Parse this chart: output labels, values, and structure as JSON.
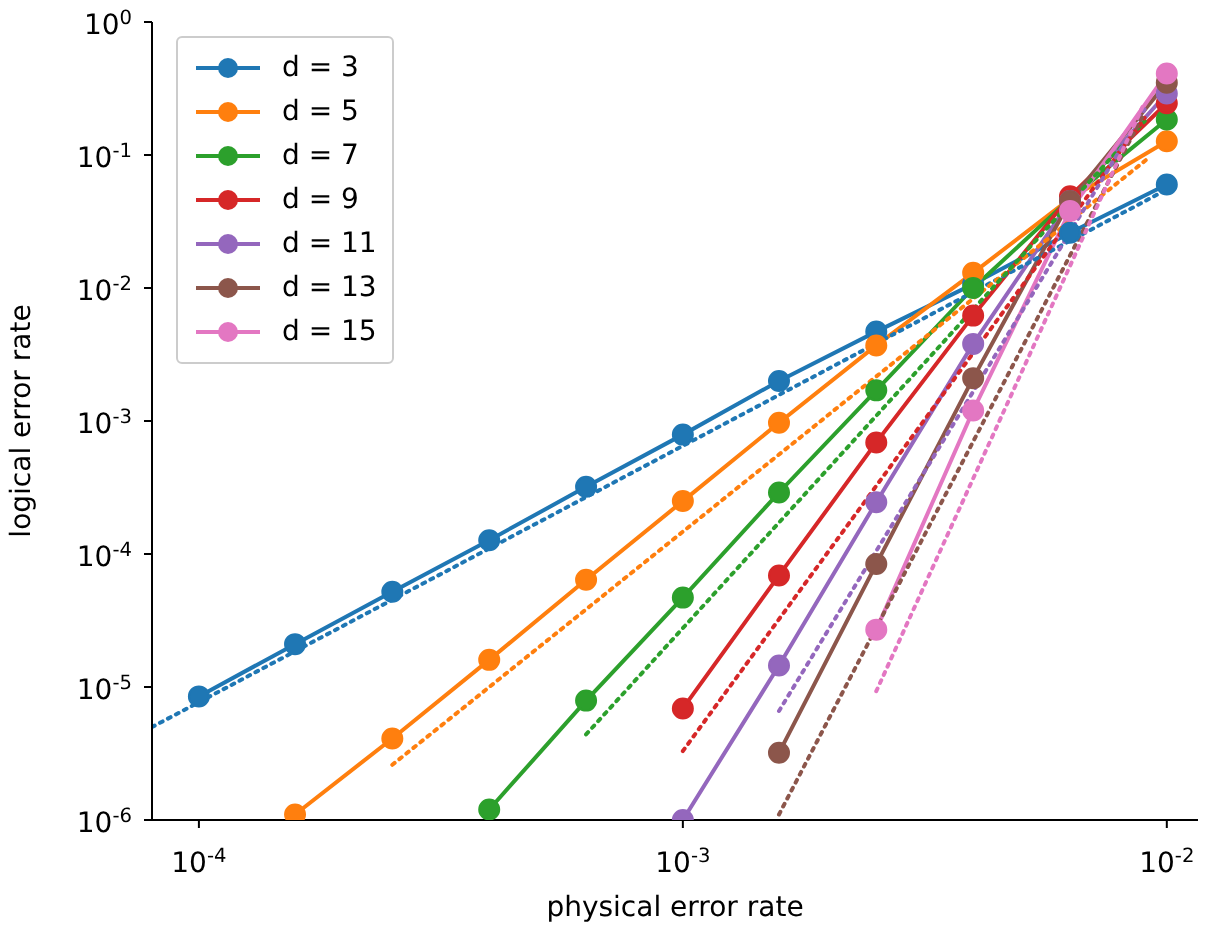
{
  "chart_data": {
    "type": "line",
    "xlabel": "physical error rate",
    "ylabel": "logical error rate",
    "log": "xy",
    "legend": "top left",
    "marker": "circle",
    "line_style": "solid",
    "xlim": [
      8e-05,
      0.0116
    ],
    "xticks": [
      {
        "value": 0.0001,
        "label": "10$^{-4}$"
      },
      {
        "value": 0.001,
        "label": "10$^{-3}$"
      },
      {
        "value": 0.01,
        "label": "10$^{-2}$"
      }
    ],
    "ylim": [
      1e-06,
      1
    ],
    "yticks": [
      {
        "value": 1e-06,
        "label": "10$^{-6}$"
      },
      {
        "value": 1e-05,
        "label": "10$^{-5}$"
      },
      {
        "value": 0.0001,
        "label": "10$^{-4}$"
      },
      {
        "value": 0.001,
        "label": "10$^{-3}$"
      },
      {
        "value": 0.01,
        "label": "10$^{-2}$"
      },
      {
        "value": 0.1,
        "label": "10$^{-1}$"
      },
      {
        "value": 1,
        "label": "10$^{0}$"
      }
    ],
    "series": [
      {
        "name": "d = 3",
        "color": "#1f77b4",
        "x": [
          0.0001,
          0.000158,
          0.000251,
          0.000398,
          0.000631,
          0.001,
          0.00158,
          0.00251,
          0.00398,
          0.00631,
          0.01
        ],
        "values": [
          8.5e-06,
          2.1e-05,
          5.2e-05,
          0.000127,
          0.00032,
          0.00079,
          0.002,
          0.0047,
          0.0107,
          0.026,
          0.06
        ]
      },
      {
        "name": "d = 5",
        "color": "#ff7f0e",
        "x": [
          0.000158,
          0.000251,
          0.000398,
          0.000631,
          0.001,
          0.00158,
          0.00251,
          0.00398,
          0.00631,
          0.01
        ],
        "values": [
          1.1e-06,
          4.1e-06,
          1.6e-05,
          6.4e-05,
          0.00025,
          0.00097,
          0.0037,
          0.013,
          0.047,
          0.127
        ]
      },
      {
        "name": "d = 7",
        "color": "#2ca02c",
        "x": [
          0.000398,
          0.000631,
          0.001,
          0.00158,
          0.00251,
          0.00398,
          0.00631,
          0.01
        ],
        "values": [
          1.2e-06,
          7.9e-06,
          4.7e-05,
          0.00029,
          0.0017,
          0.01,
          0.047,
          0.185
        ]
      },
      {
        "name": "d = 9",
        "color": "#d62728",
        "x": [
          0.001,
          0.00158,
          0.00251,
          0.00398,
          0.00631,
          0.01
        ],
        "values": [
          6.9e-06,
          6.9e-05,
          0.00069,
          0.0062,
          0.049,
          0.245
        ]
      },
      {
        "name": "d = 11",
        "color": "#9467bd",
        "x": [
          0.001,
          0.00158,
          0.00251,
          0.00398,
          0.00631,
          0.01
        ],
        "values": [
          1e-06,
          1.45e-05,
          0.000245,
          0.0038,
          0.045,
          0.29
        ]
      },
      {
        "name": "d = 13",
        "color": "#8c564b",
        "x": [
          0.00158,
          0.00251,
          0.00398,
          0.00631,
          0.01
        ],
        "values": [
          3.2e-06,
          8.4e-05,
          0.0021,
          0.045,
          0.35
        ]
      },
      {
        "name": "d = 15",
        "color": "#e377c2",
        "x": [
          0.00251,
          0.00398,
          0.00631,
          0.01
        ],
        "values": [
          2.7e-05,
          0.0012,
          0.038,
          0.41
        ]
      },
      {
        "color": "#1f77b4",
        "line_style": "dotted",
        "marker": "none",
        "x": [
          8e-05,
          0.01
        ],
        "values": [
          5e-06,
          0.055
        ]
      },
      {
        "color": "#ff7f0e",
        "line_style": "dotted",
        "marker": "none",
        "x": [
          0.000251,
          0.0091
        ],
        "values": [
          2.6e-06,
          0.093
        ]
      },
      {
        "color": "#2ca02c",
        "line_style": "dotted",
        "marker": "none",
        "x": [
          0.000631,
          0.009
        ],
        "values": [
          4.4e-06,
          0.18
        ]
      },
      {
        "color": "#d62728",
        "line_style": "dotted",
        "marker": "none",
        "x": [
          0.001,
          0.009
        ],
        "values": [
          3.3e-06,
          0.19
        ]
      },
      {
        "color": "#9467bd",
        "line_style": "dotted",
        "marker": "none",
        "x": [
          0.00158,
          0.009
        ],
        "values": [
          6.6e-06,
          0.22
        ]
      },
      {
        "color": "#8c564b",
        "line_style": "dotted",
        "marker": "none",
        "x": [
          0.00158,
          0.009
        ],
        "values": [
          1.1e-06,
          0.21
        ]
      },
      {
        "color": "#e377c2",
        "line_style": "dotted",
        "marker": "none",
        "x": [
          0.00251,
          0.009
        ],
        "values": [
          9.3e-06,
          0.25
        ]
      }
    ]
  }
}
